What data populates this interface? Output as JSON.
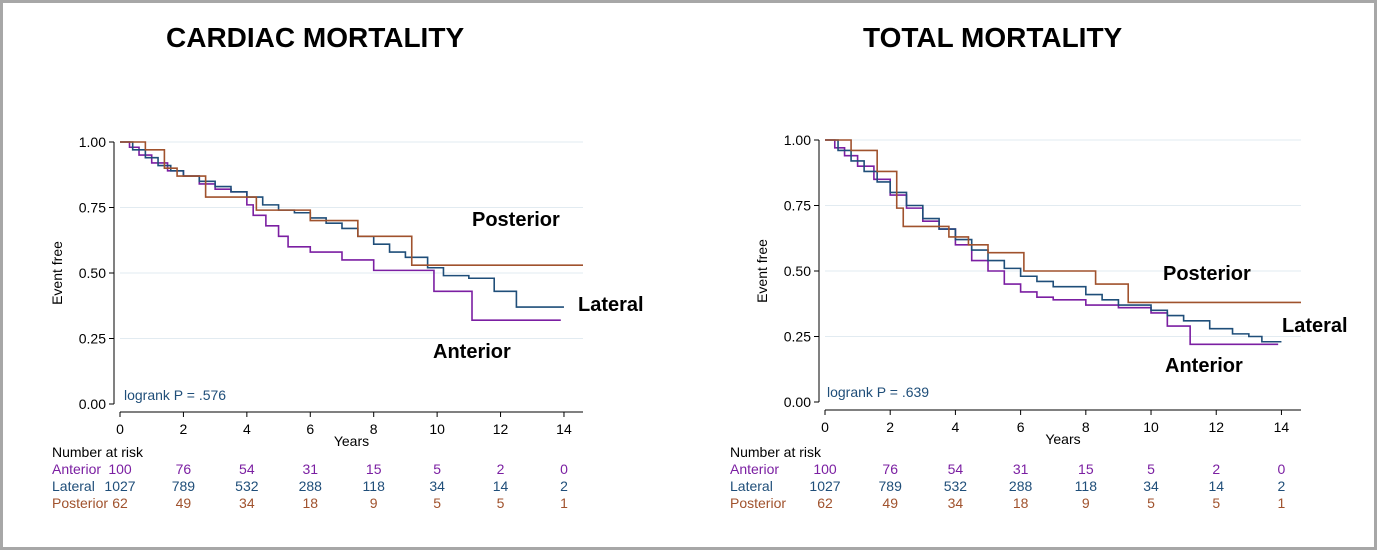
{
  "colors": {
    "Anterior": "#7b1fa2",
    "Lateral": "#1f4e79",
    "Posterior": "#a0522d",
    "grid": "#e2ebf1",
    "annot": "#1f4e79"
  },
  "risk_header": "Number at risk",
  "chart_data": [
    {
      "type": "line",
      "title": "CARDIAC MORTALITY",
      "xlabel": "Years",
      "ylabel": "Event free",
      "xlim": [
        0,
        14.6
      ],
      "ylim": [
        0,
        1
      ],
      "xticks": [
        "0",
        "2",
        "4",
        "6",
        "8",
        "10",
        "12",
        "14"
      ],
      "yticks": [
        "0.00",
        "0.25",
        "0.50",
        "0.75",
        "1.00"
      ],
      "grid": true,
      "annotation": "logrank P = .576",
      "group_labels": [
        "Posterior",
        "Lateral",
        "Anterior"
      ],
      "series": [
        {
          "name": "Anterior",
          "steps": [
            [
              0,
              1.0
            ],
            [
              0.3,
              0.98
            ],
            [
              0.6,
              0.95
            ],
            [
              1.0,
              0.92
            ],
            [
              1.5,
              0.89
            ],
            [
              2.0,
              0.87
            ],
            [
              2.5,
              0.84
            ],
            [
              3.0,
              0.82
            ],
            [
              3.5,
              0.81
            ],
            [
              4.0,
              0.76
            ],
            [
              4.2,
              0.72
            ],
            [
              4.6,
              0.68
            ],
            [
              5.0,
              0.64
            ],
            [
              5.3,
              0.6
            ],
            [
              6.0,
              0.58
            ],
            [
              7.0,
              0.55
            ],
            [
              8.0,
              0.51
            ],
            [
              9.0,
              0.51
            ],
            [
              9.9,
              0.43
            ],
            [
              11.1,
              0.32
            ],
            [
              13.9,
              0.32
            ]
          ]
        },
        {
          "name": "Lateral",
          "steps": [
            [
              0,
              1.0
            ],
            [
              0.4,
              0.97
            ],
            [
              0.8,
              0.94
            ],
            [
              1.2,
              0.91
            ],
            [
              1.6,
              0.89
            ],
            [
              2.0,
              0.87
            ],
            [
              2.5,
              0.85
            ],
            [
              3.0,
              0.83
            ],
            [
              3.5,
              0.81
            ],
            [
              4.0,
              0.79
            ],
            [
              4.5,
              0.76
            ],
            [
              5.0,
              0.74
            ],
            [
              5.5,
              0.73
            ],
            [
              6.0,
              0.71
            ],
            [
              6.5,
              0.69
            ],
            [
              7.0,
              0.67
            ],
            [
              7.5,
              0.64
            ],
            [
              8.0,
              0.61
            ],
            [
              8.5,
              0.58
            ],
            [
              9.0,
              0.56
            ],
            [
              9.7,
              0.52
            ],
            [
              10.2,
              0.49
            ],
            [
              11.0,
              0.48
            ],
            [
              11.8,
              0.43
            ],
            [
              12.5,
              0.37
            ],
            [
              14.0,
              0.37
            ]
          ]
        },
        {
          "name": "Posterior",
          "steps": [
            [
              0,
              1.0
            ],
            [
              0.8,
              0.97
            ],
            [
              1.4,
              0.9
            ],
            [
              1.8,
              0.87
            ],
            [
              2.7,
              0.79
            ],
            [
              4.3,
              0.74
            ],
            [
              6.0,
              0.7
            ],
            [
              7.5,
              0.64
            ],
            [
              9.2,
              0.53
            ],
            [
              14.6,
              0.53
            ]
          ]
        }
      ],
      "risk_table": {
        "times": [
          "0",
          "2",
          "4",
          "6",
          "8",
          "10",
          "12",
          "14"
        ],
        "rows": [
          {
            "name": "Anterior",
            "values": [
              "100",
              "76",
              "54",
              "31",
              "15",
              "5",
              "2",
              "0"
            ]
          },
          {
            "name": "Lateral",
            "values": [
              "1027",
              "789",
              "532",
              "288",
              "118",
              "34",
              "14",
              "2"
            ]
          },
          {
            "name": "Posterior",
            "values": [
              "62",
              "49",
              "34",
              "18",
              "9",
              "5",
              "5",
              "1"
            ]
          }
        ]
      }
    },
    {
      "type": "line",
      "title": "TOTAL MORTALITY",
      "xlabel": "Years",
      "ylabel": "Event free",
      "xlim": [
        0,
        14.6
      ],
      "ylim": [
        0,
        1
      ],
      "xticks": [
        "0",
        "2",
        "4",
        "6",
        "8",
        "10",
        "12",
        "14"
      ],
      "yticks": [
        "0.00",
        "0.25",
        "0.50",
        "0.75",
        "1.00"
      ],
      "grid": true,
      "annotation": "logrank P = .639",
      "group_labels": [
        "Posterior",
        "Lateral",
        "Anterior"
      ],
      "series": [
        {
          "name": "Anterior",
          "steps": [
            [
              0,
              1.0
            ],
            [
              0.3,
              0.97
            ],
            [
              0.6,
              0.94
            ],
            [
              1.0,
              0.9
            ],
            [
              1.5,
              0.85
            ],
            [
              2.0,
              0.79
            ],
            [
              2.5,
              0.74
            ],
            [
              3.0,
              0.69
            ],
            [
              3.5,
              0.66
            ],
            [
              4.0,
              0.6
            ],
            [
              4.5,
              0.54
            ],
            [
              5.0,
              0.5
            ],
            [
              5.5,
              0.45
            ],
            [
              6.0,
              0.42
            ],
            [
              6.5,
              0.4
            ],
            [
              7.0,
              0.39
            ],
            [
              8.0,
              0.37
            ],
            [
              9.0,
              0.36
            ],
            [
              10.0,
              0.34
            ],
            [
              10.5,
              0.29
            ],
            [
              11.2,
              0.22
            ],
            [
              13.9,
              0.22
            ]
          ]
        },
        {
          "name": "Lateral",
          "steps": [
            [
              0,
              1.0
            ],
            [
              0.4,
              0.96
            ],
            [
              0.8,
              0.92
            ],
            [
              1.2,
              0.88
            ],
            [
              1.6,
              0.84
            ],
            [
              2.0,
              0.8
            ],
            [
              2.5,
              0.75
            ],
            [
              3.0,
              0.7
            ],
            [
              3.5,
              0.66
            ],
            [
              4.0,
              0.62
            ],
            [
              4.5,
              0.58
            ],
            [
              5.0,
              0.54
            ],
            [
              5.5,
              0.51
            ],
            [
              6.0,
              0.48
            ],
            [
              6.5,
              0.46
            ],
            [
              7.0,
              0.44
            ],
            [
              8.0,
              0.41
            ],
            [
              8.5,
              0.39
            ],
            [
              9.0,
              0.37
            ],
            [
              10.0,
              0.35
            ],
            [
              10.5,
              0.33
            ],
            [
              11.0,
              0.31
            ],
            [
              11.8,
              0.28
            ],
            [
              12.5,
              0.26
            ],
            [
              13.0,
              0.25
            ],
            [
              13.4,
              0.23
            ],
            [
              14.0,
              0.23
            ]
          ]
        },
        {
          "name": "Posterior",
          "steps": [
            [
              0,
              1.0
            ],
            [
              0.8,
              0.96
            ],
            [
              1.6,
              0.88
            ],
            [
              2.2,
              0.74
            ],
            [
              2.4,
              0.67
            ],
            [
              3.8,
              0.63
            ],
            [
              4.4,
              0.6
            ],
            [
              5.0,
              0.57
            ],
            [
              6.1,
              0.5
            ],
            [
              8.3,
              0.45
            ],
            [
              9.3,
              0.38
            ],
            [
              14.6,
              0.38
            ]
          ]
        }
      ],
      "risk_table": {
        "times": [
          "0",
          "2",
          "4",
          "6",
          "8",
          "10",
          "12",
          "14"
        ],
        "rows": [
          {
            "name": "Anterior",
            "values": [
              "100",
              "76",
              "54",
              "31",
              "15",
              "5",
              "2",
              "0"
            ]
          },
          {
            "name": "Lateral",
            "values": [
              "1027",
              "789",
              "532",
              "288",
              "118",
              "34",
              "14",
              "2"
            ]
          },
          {
            "name": "Posterior",
            "values": [
              "62",
              "49",
              "34",
              "18",
              "9",
              "5",
              "5",
              "1"
            ]
          }
        ]
      }
    }
  ]
}
